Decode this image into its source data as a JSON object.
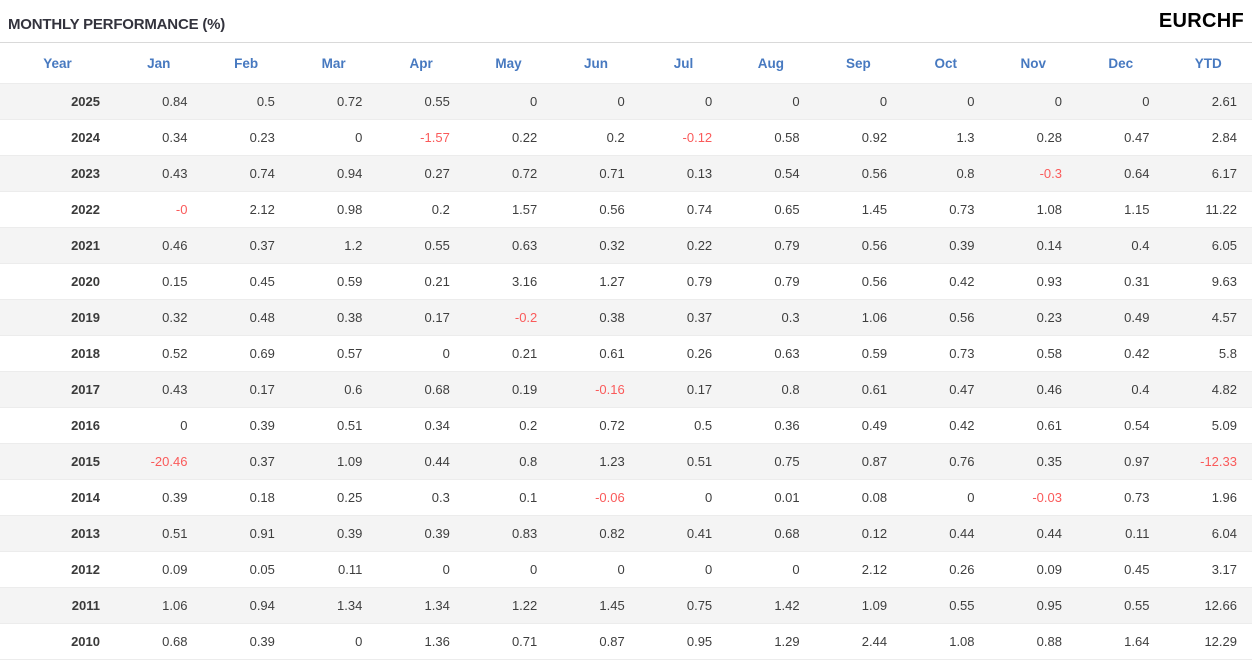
{
  "header": {
    "title": "MONTHLY PERFORMANCE (%)",
    "symbol": "EURCHF"
  },
  "colors": {
    "header_blue": "#4779c0",
    "negative_red": "#fa5a5a",
    "text": "#3e3e3e",
    "stripe_bg": "#f4f4f4"
  },
  "chart_data": {
    "type": "table",
    "title": "MONTHLY PERFORMANCE (%)",
    "instrument": "EURCHF",
    "columns": [
      "Year",
      "Jan",
      "Feb",
      "Mar",
      "Apr",
      "May",
      "Jun",
      "Jul",
      "Aug",
      "Sep",
      "Oct",
      "Nov",
      "Dec",
      "YTD"
    ],
    "rows": [
      [
        "2025",
        "0.84",
        "0.5",
        "0.72",
        "0.55",
        "0",
        "0",
        "0",
        "0",
        "0",
        "0",
        "0",
        "0",
        "2.61"
      ],
      [
        "2024",
        "0.34",
        "0.23",
        "0",
        "-1.57",
        "0.22",
        "0.2",
        "-0.12",
        "0.58",
        "0.92",
        "1.3",
        "0.28",
        "0.47",
        "2.84"
      ],
      [
        "2023",
        "0.43",
        "0.74",
        "0.94",
        "0.27",
        "0.72",
        "0.71",
        "0.13",
        "0.54",
        "0.56",
        "0.8",
        "-0.3",
        "0.64",
        "6.17"
      ],
      [
        "2022",
        "-0",
        "2.12",
        "0.98",
        "0.2",
        "1.57",
        "0.56",
        "0.74",
        "0.65",
        "1.45",
        "0.73",
        "1.08",
        "1.15",
        "11.22"
      ],
      [
        "2021",
        "0.46",
        "0.37",
        "1.2",
        "0.55",
        "0.63",
        "0.32",
        "0.22",
        "0.79",
        "0.56",
        "0.39",
        "0.14",
        "0.4",
        "6.05"
      ],
      [
        "2020",
        "0.15",
        "0.45",
        "0.59",
        "0.21",
        "3.16",
        "1.27",
        "0.79",
        "0.79",
        "0.56",
        "0.42",
        "0.93",
        "0.31",
        "9.63"
      ],
      [
        "2019",
        "0.32",
        "0.48",
        "0.38",
        "0.17",
        "-0.2",
        "0.38",
        "0.37",
        "0.3",
        "1.06",
        "0.56",
        "0.23",
        "0.49",
        "4.57"
      ],
      [
        "2018",
        "0.52",
        "0.69",
        "0.57",
        "0",
        "0.21",
        "0.61",
        "0.26",
        "0.63",
        "0.59",
        "0.73",
        "0.58",
        "0.42",
        "5.8"
      ],
      [
        "2017",
        "0.43",
        "0.17",
        "0.6",
        "0.68",
        "0.19",
        "-0.16",
        "0.17",
        "0.8",
        "0.61",
        "0.47",
        "0.46",
        "0.4",
        "4.82"
      ],
      [
        "2016",
        "0",
        "0.39",
        "0.51",
        "0.34",
        "0.2",
        "0.72",
        "0.5",
        "0.36",
        "0.49",
        "0.42",
        "0.61",
        "0.54",
        "5.09"
      ],
      [
        "2015",
        "-20.46",
        "0.37",
        "1.09",
        "0.44",
        "0.8",
        "1.23",
        "0.51",
        "0.75",
        "0.87",
        "0.76",
        "0.35",
        "0.97",
        "-12.33"
      ],
      [
        "2014",
        "0.39",
        "0.18",
        "0.25",
        "0.3",
        "0.1",
        "-0.06",
        "0",
        "0.01",
        "0.08",
        "0",
        "-0.03",
        "0.73",
        "1.96"
      ],
      [
        "2013",
        "0.51",
        "0.91",
        "0.39",
        "0.39",
        "0.83",
        "0.82",
        "0.41",
        "0.68",
        "0.12",
        "0.44",
        "0.44",
        "0.11",
        "6.04"
      ],
      [
        "2012",
        "0.09",
        "0.05",
        "0.11",
        "0",
        "0",
        "0",
        "0",
        "0",
        "2.12",
        "0.26",
        "0.09",
        "0.45",
        "3.17"
      ],
      [
        "2011",
        "1.06",
        "0.94",
        "1.34",
        "1.34",
        "1.22",
        "1.45",
        "0.75",
        "1.42",
        "1.09",
        "0.55",
        "0.95",
        "0.55",
        "12.66"
      ],
      [
        "2010",
        "0.68",
        "0.39",
        "0",
        "1.36",
        "0.71",
        "0.87",
        "0.95",
        "1.29",
        "2.44",
        "1.08",
        "0.88",
        "1.64",
        "12.29"
      ]
    ]
  }
}
